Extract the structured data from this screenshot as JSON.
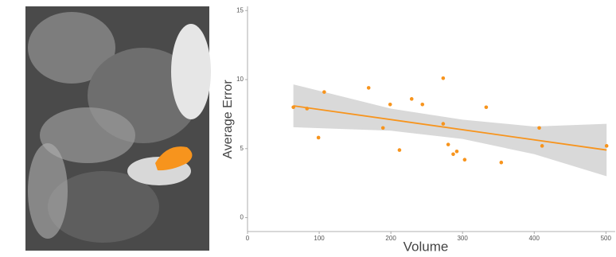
{
  "chart_data": {
    "type": "scatter",
    "x_label": "Volume",
    "y_label": "Average Error",
    "x": [
      64,
      83,
      99,
      107,
      169,
      189,
      199,
      212,
      229,
      244,
      273,
      273,
      280,
      287,
      292,
      303,
      333,
      354,
      407,
      411,
      501
    ],
    "y": [
      8.0,
      7.9,
      5.8,
      9.1,
      9.4,
      6.5,
      8.2,
      4.9,
      8.6,
      8.2,
      10.1,
      6.8,
      5.3,
      4.6,
      4.8,
      4.2,
      8.0,
      4.0,
      6.5,
      5.2,
      5.2
    ],
    "color": "#f7941d",
    "fit": {
      "x": [
        64,
        501
      ],
      "y": [
        8.1,
        4.9
      ],
      "color": "#f7941d"
    },
    "band": {
      "x": [
        64,
        200,
        300,
        400,
        501
      ],
      "lower": [
        6.55,
        6.3,
        5.7,
        4.6,
        3.0
      ],
      "upper": [
        9.65,
        7.9,
        7.1,
        6.6,
        6.8
      ],
      "color": "#d9d9d9"
    },
    "xlim": [
      0,
      513
    ],
    "ylim": [
      -1,
      15.3
    ],
    "xticks": [
      0,
      100,
      200,
      300,
      400,
      500
    ],
    "yticks": [
      0,
      5,
      10,
      15
    ]
  }
}
